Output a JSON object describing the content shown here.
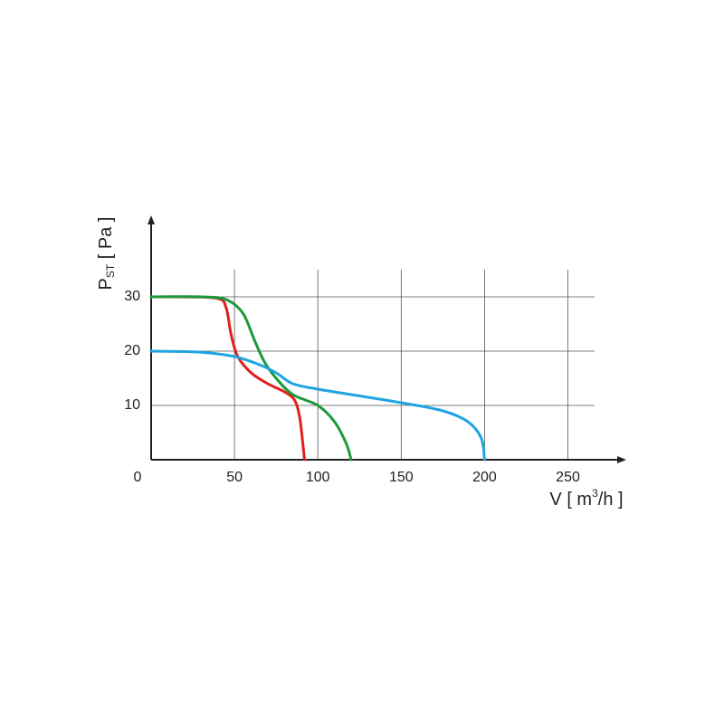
{
  "chart_data": {
    "type": "line",
    "x_label": [
      "V [ m",
      "3",
      "/h ]"
    ],
    "y_label": [
      "P",
      "ST",
      " [ Pa ]"
    ],
    "xlim": [
      0,
      285
    ],
    "ylim": [
      0,
      45
    ],
    "xticks": [
      0,
      50,
      100,
      150,
      200,
      250
    ],
    "yticks": [
      10,
      20,
      30
    ],
    "grid": true,
    "series": [
      {
        "color": "#e0201b",
        "x": [
          0,
          20,
          40,
          45,
          48,
          52,
          60,
          70,
          80,
          86,
          89,
          91,
          92
        ],
        "values": [
          30,
          30,
          29.7,
          28,
          23,
          19,
          16,
          14,
          12.5,
          11,
          8,
          3,
          0
        ]
      },
      {
        "color": "#1a9a3a",
        "x": [
          0,
          30,
          45,
          55,
          62,
          68,
          75,
          85,
          100,
          110,
          117,
          120
        ],
        "values": [
          30,
          30,
          29.5,
          27,
          22,
          18,
          15,
          12,
          10,
          7,
          3,
          0
        ]
      },
      {
        "color": "#1ea4e0",
        "x": [
          0,
          30,
          50,
          65,
          75,
          85,
          100,
          120,
          150,
          175,
          190,
          198,
          200
        ],
        "values": [
          20,
          19.8,
          19,
          17.5,
          16,
          14,
          13,
          12,
          10.5,
          9,
          7,
          4,
          0
        ]
      }
    ]
  }
}
